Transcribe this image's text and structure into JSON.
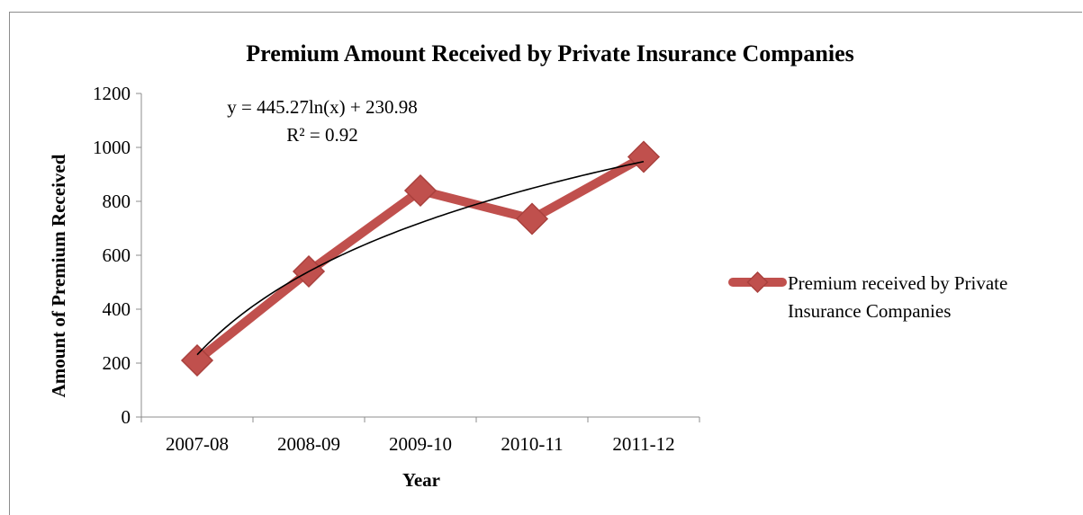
{
  "chart_data": {
    "type": "line",
    "title": "Premium Amount Received by Private Insurance Companies",
    "xlabel": "Year",
    "ylabel": "Amount of Premium Received",
    "categories": [
      "2007-08",
      "2008-09",
      "2009-10",
      "2010-11",
      "2011-12"
    ],
    "series": [
      {
        "name": "Premium received by Private Insurance Companies",
        "values": [
          210,
          540,
          840,
          735,
          965
        ],
        "color": "#c0504d"
      }
    ],
    "ylim": [
      0,
      1200
    ],
    "yticks": [
      "0",
      "200",
      "400",
      "600",
      "800",
      "1000",
      "1200"
    ],
    "trendline": {
      "type": "logarithmic",
      "a": 445.27,
      "b": 230.98,
      "equation": "y = 445.27ln(x) + 230.98",
      "r_squared": "R² = 0.92",
      "color": "#000000"
    },
    "legend": {
      "position": "right",
      "lines": [
        "Premium received by Private",
        "Insurance Companies"
      ]
    },
    "grid": false
  }
}
